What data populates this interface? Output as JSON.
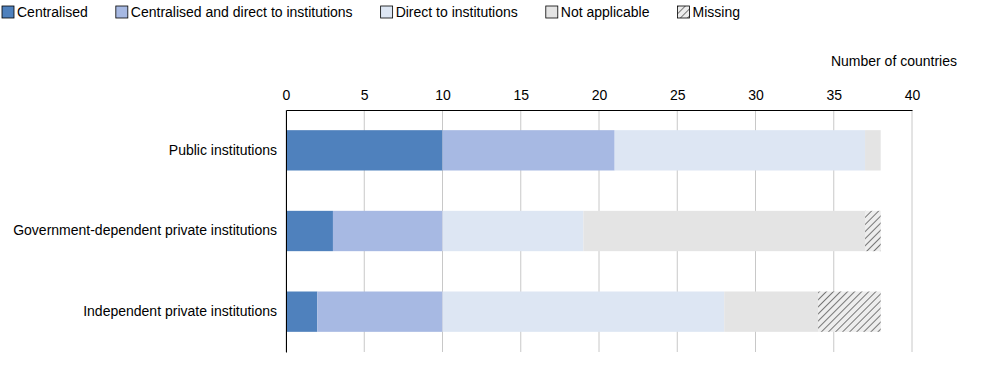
{
  "chart_data": {
    "type": "bar",
    "orientation": "horizontal",
    "stacked": true,
    "grid": true,
    "legend": "top",
    "xlabel": "Number of countries",
    "categories": [
      "Public institutions",
      "Government-dependent private institutions",
      "Independent private institutions"
    ],
    "series": [
      {
        "name": "Centralised",
        "color": "#4f81bd",
        "values": [
          10,
          3,
          2
        ]
      },
      {
        "name": "Centralised and direct to institutions",
        "color": "#a7b9e3",
        "values": [
          11,
          7,
          8
        ]
      },
      {
        "name": "Direct to institutions",
        "color": "#dde6f3",
        "values": [
          16,
          9,
          18
        ]
      },
      {
        "name": "Not applicable",
        "color": "#e4e4e4",
        "values": [
          1,
          18,
          6
        ]
      },
      {
        "name": "Missing",
        "color": "#595959",
        "line_style": "hatch",
        "values": [
          0,
          1,
          4
        ]
      }
    ],
    "xlim": [
      0,
      40
    ],
    "xticks": [
      0,
      5,
      10,
      15,
      20,
      25,
      30,
      35,
      40
    ]
  }
}
